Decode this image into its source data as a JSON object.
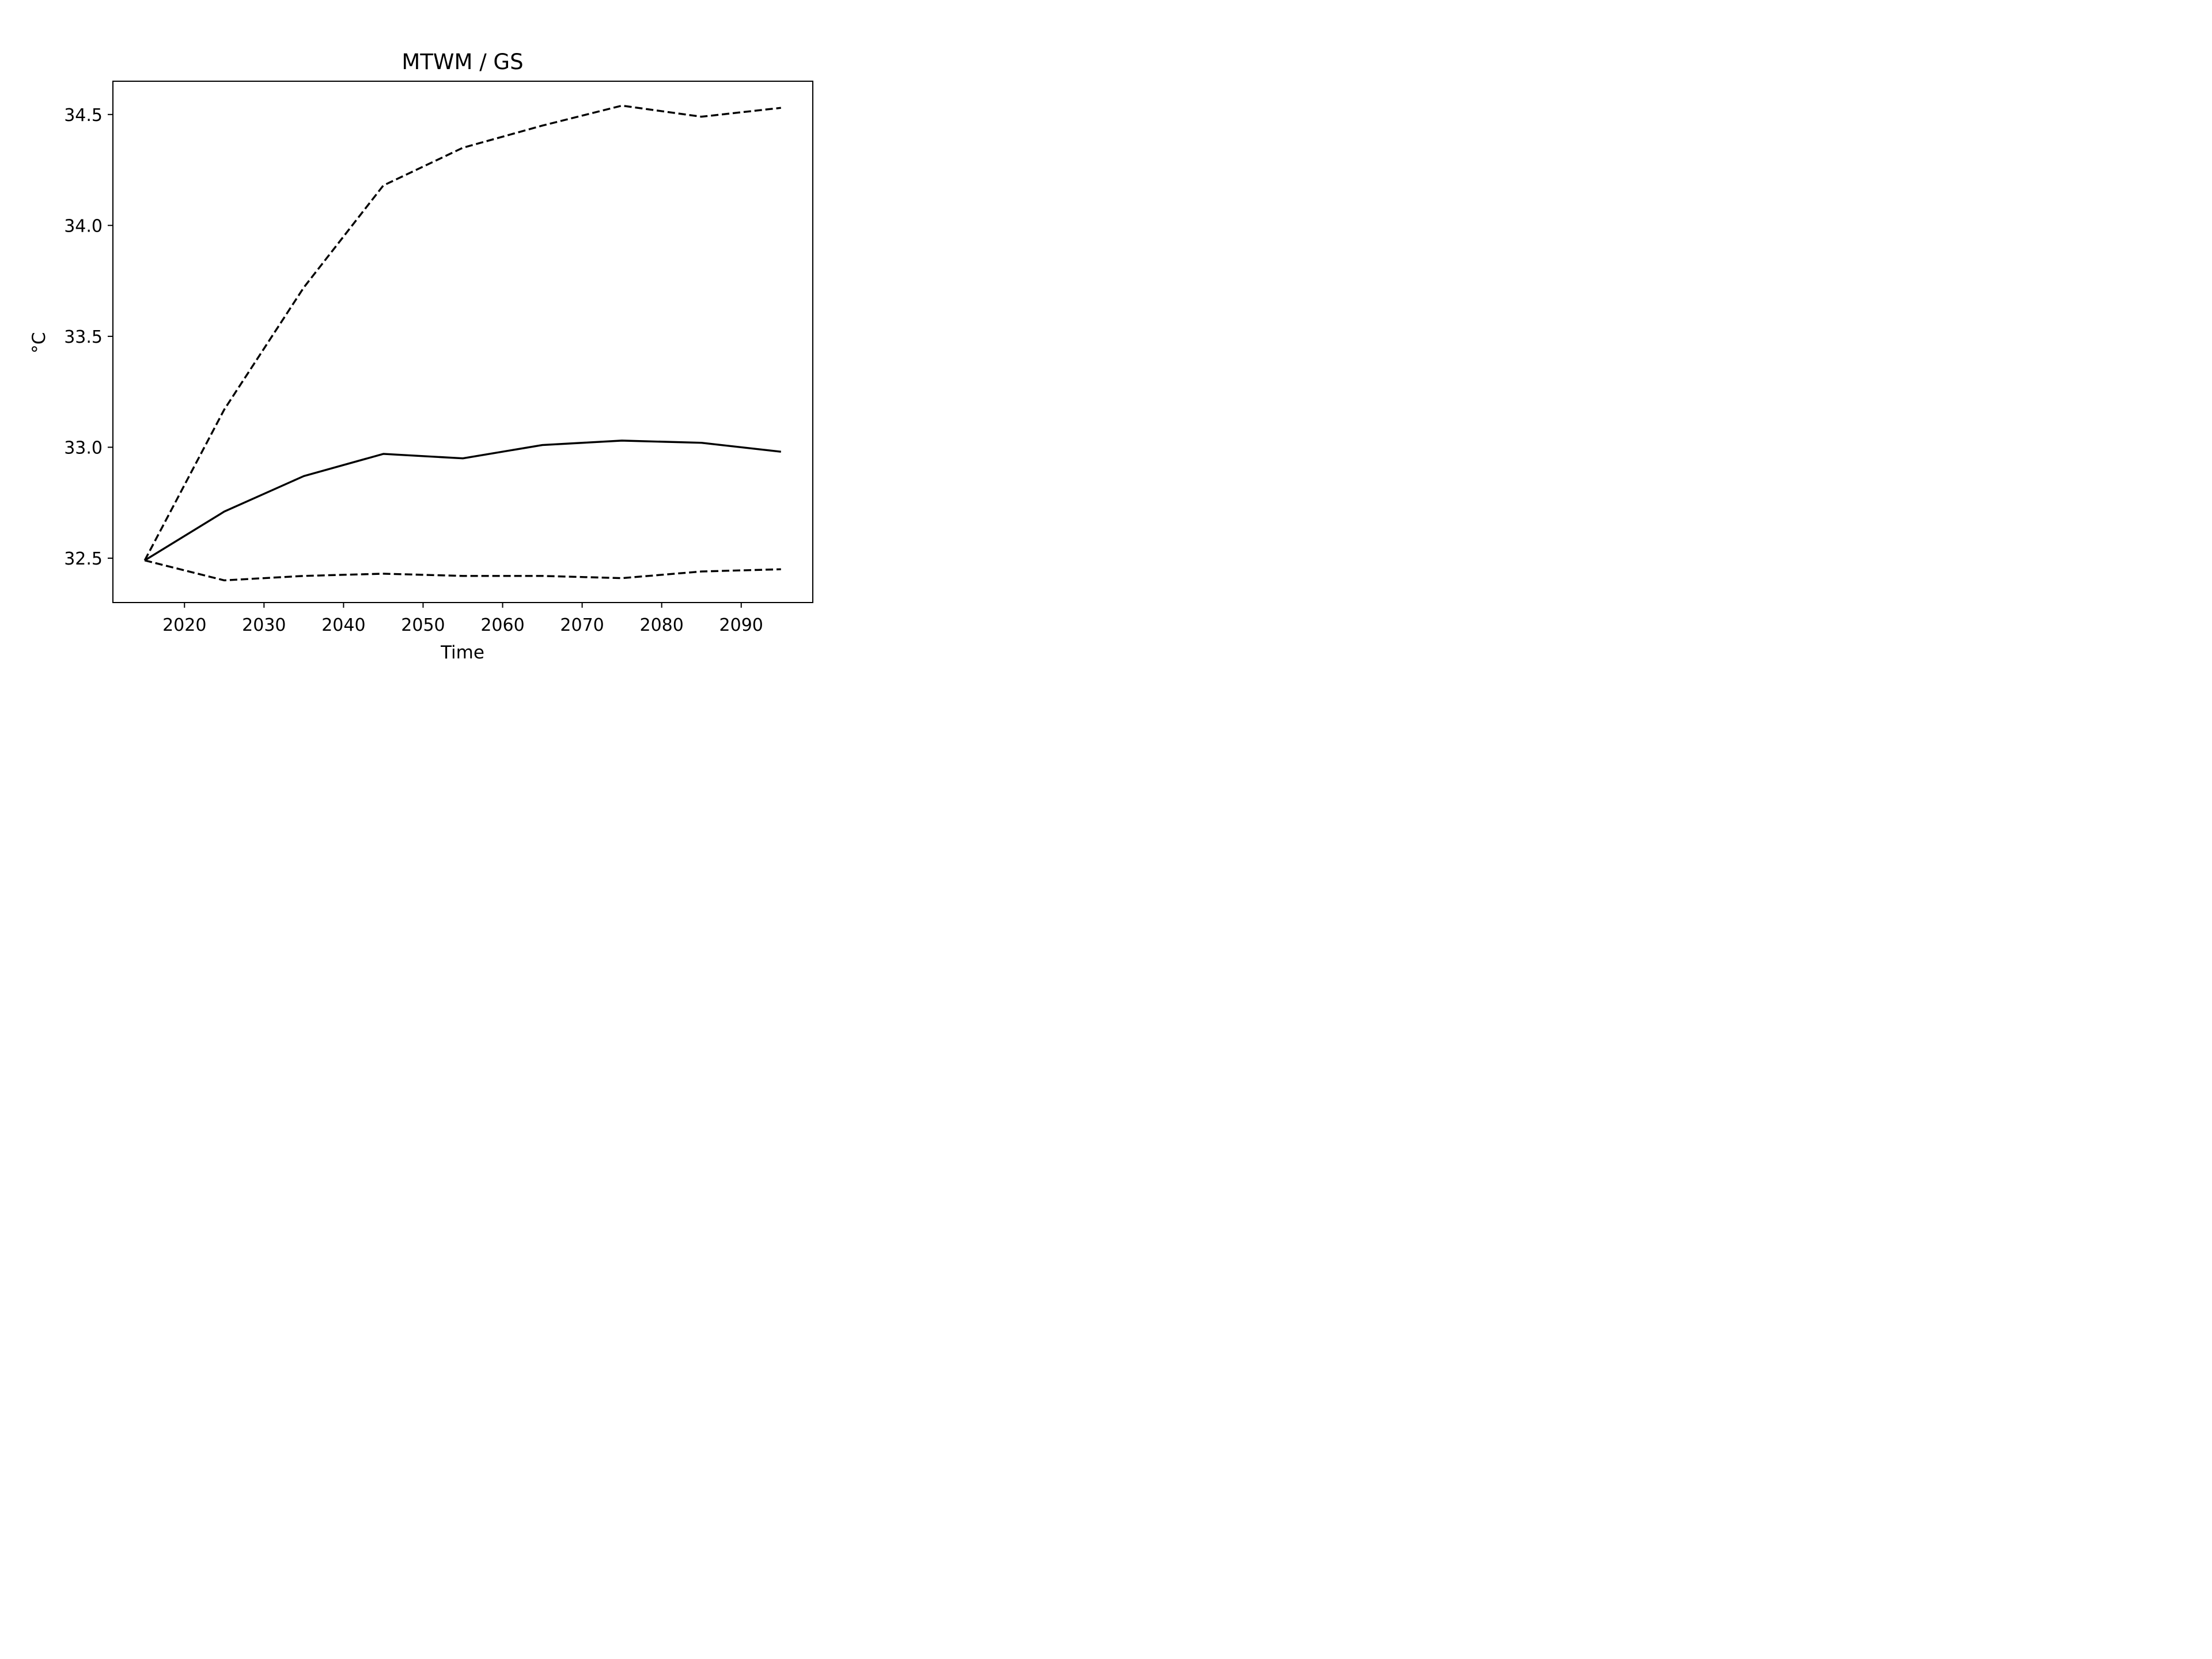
{
  "chart_data": {
    "type": "line",
    "title": "MTWM / GS",
    "xlabel": "Time",
    "ylabel": "°C",
    "xlim": [
      2011.0,
      2099.0
    ],
    "ylim": [
      32.3,
      34.65
    ],
    "xticks": [
      2020,
      2030,
      2040,
      2050,
      2060,
      2070,
      2080,
      2090
    ],
    "xtick_labels": [
      "2020",
      "2030",
      "2040",
      "2050",
      "2060",
      "2070",
      "2080",
      "2090"
    ],
    "yticks": [
      32.5,
      33.0,
      33.5,
      34.0,
      34.5
    ],
    "ytick_labels": [
      "32.5",
      "33.0",
      "33.5",
      "34.0",
      "34.5"
    ],
    "grid": false,
    "legend": "none",
    "x": [
      2015,
      2025,
      2035,
      2045,
      2055,
      2065,
      2075,
      2085,
      2095
    ],
    "series": [
      {
        "style": "solid",
        "color": "#000000",
        "values": [
          32.49,
          32.71,
          32.87,
          32.97,
          32.95,
          33.01,
          33.03,
          33.02,
          32.98
        ]
      },
      {
        "style": "dashed",
        "color": "#000000",
        "values": [
          32.49,
          33.17,
          33.72,
          34.18,
          34.35,
          34.45,
          34.54,
          34.49,
          34.53
        ]
      },
      {
        "style": "dashed",
        "color": "#000000",
        "values": [
          32.49,
          32.4,
          32.42,
          32.43,
          32.42,
          32.42,
          32.41,
          32.44,
          32.45
        ]
      }
    ]
  }
}
